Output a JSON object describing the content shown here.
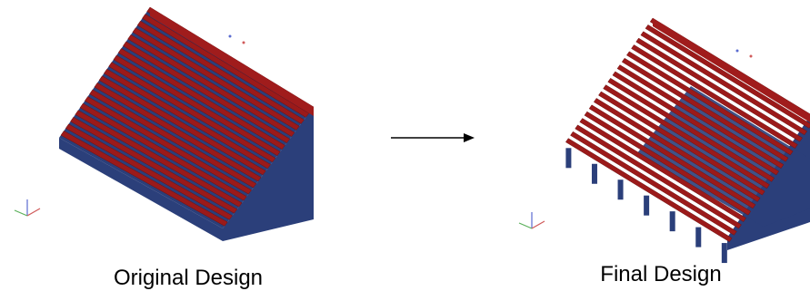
{
  "captions": {
    "left": "Original Design",
    "right": "Final Design"
  }
}
